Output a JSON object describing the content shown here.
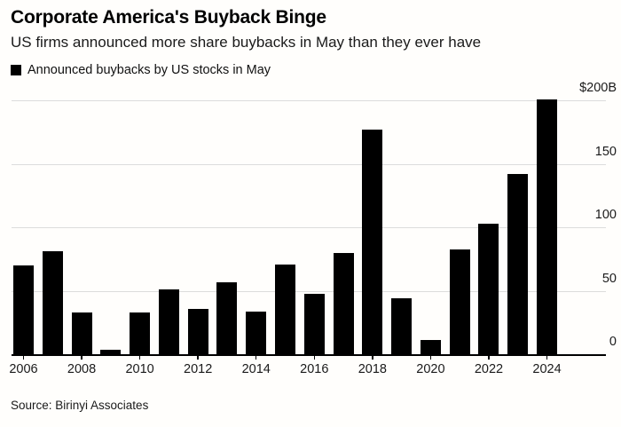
{
  "header": {
    "title": "Corporate America's Buyback Binge",
    "subtitle": "US firms announced more share buybacks in May than they ever have"
  },
  "legend": {
    "label": "Announced buybacks by US stocks in May",
    "swatch_color": "#000000"
  },
  "chart_data": {
    "type": "bar",
    "title": "Corporate America's Buyback Binge",
    "subtitle": "US firms announced more share buybacks in May than they ever have",
    "series_name": "Announced buybacks by US stocks in May",
    "unit": "$B",
    "categories": [
      2006,
      2007,
      2008,
      2009,
      2010,
      2011,
      2012,
      2013,
      2014,
      2015,
      2016,
      2017,
      2018,
      2019,
      2020,
      2021,
      2022,
      2023,
      2024
    ],
    "values": [
      70,
      81,
      33,
      3.5,
      33,
      51,
      36,
      57,
      34,
      71,
      48,
      80,
      177,
      44,
      11,
      83,
      103,
      142,
      201
    ],
    "bar_color": "#000000",
    "ylim": [
      0,
      210
    ],
    "y_ticks": [
      0,
      50,
      100,
      150,
      200
    ],
    "y_tick_labels": [
      "0",
      "50",
      "100",
      "150",
      "$200B"
    ],
    "x_tick_years": [
      2006,
      2008,
      2010,
      2012,
      2014,
      2016,
      2018,
      2020,
      2022,
      2024
    ],
    "grid": true,
    "gridline_color": "#dcdcdc",
    "legend_position": "top-left",
    "y_axis_side": "right"
  },
  "footer": {
    "source": "Source: Birinyi Associates"
  }
}
